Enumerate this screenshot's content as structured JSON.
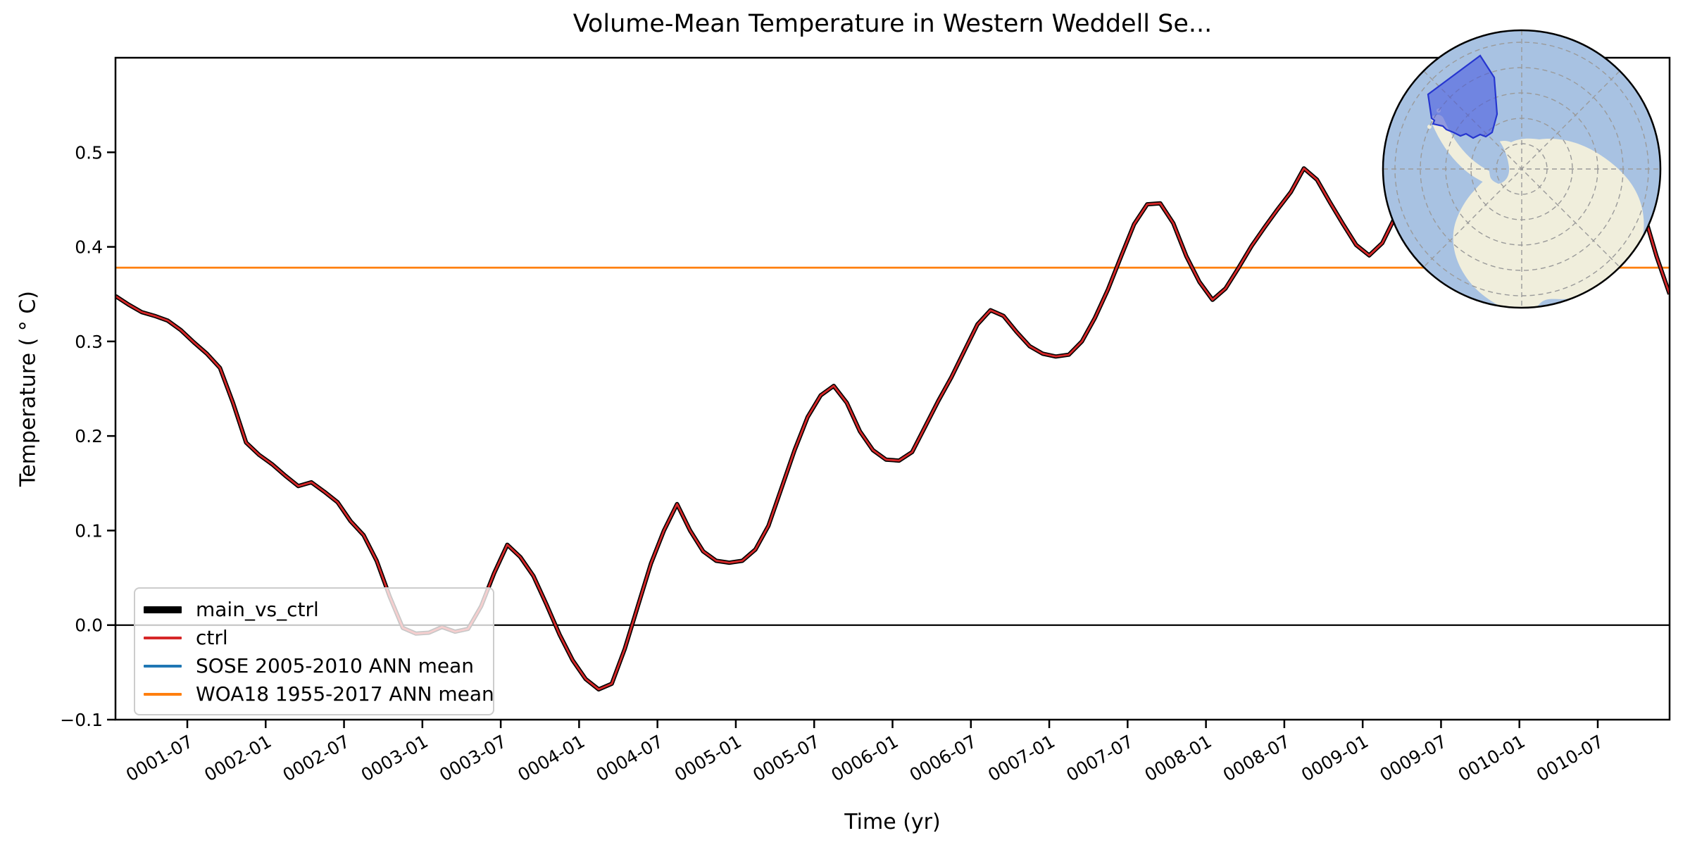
{
  "title": "Volume-Mean Temperature in Western Weddell Se...",
  "axes": {
    "xlabel": "Time (yr)",
    "ylabel": "Temperature ( ° C)",
    "ylim": [
      -0.1,
      0.6
    ],
    "x_ticks": [
      {
        "m": 6,
        "label": "0001-07"
      },
      {
        "m": 12,
        "label": "0002-01"
      },
      {
        "m": 18,
        "label": "0002-07"
      },
      {
        "m": 24,
        "label": "0003-01"
      },
      {
        "m": 30,
        "label": "0003-07"
      },
      {
        "m": 36,
        "label": "0004-01"
      },
      {
        "m": 42,
        "label": "0004-07"
      },
      {
        "m": 48,
        "label": "0005-01"
      },
      {
        "m": 54,
        "label": "0005-07"
      },
      {
        "m": 60,
        "label": "0006-01"
      },
      {
        "m": 66,
        "label": "0006-07"
      },
      {
        "m": 72,
        "label": "0007-01"
      },
      {
        "m": 78,
        "label": "0007-07"
      },
      {
        "m": 84,
        "label": "0008-01"
      },
      {
        "m": 90,
        "label": "0008-07"
      },
      {
        "m": 96,
        "label": "0009-01"
      },
      {
        "m": 102,
        "label": "0009-07"
      },
      {
        "m": 108,
        "label": "0010-01"
      },
      {
        "m": 114,
        "label": "0010-07"
      }
    ],
    "y_ticks": [
      {
        "v": -0.1,
        "label": "−0.1"
      },
      {
        "v": 0.0,
        "label": "0.0"
      },
      {
        "v": 0.1,
        "label": "0.1"
      },
      {
        "v": 0.2,
        "label": "0.2"
      },
      {
        "v": 0.3,
        "label": "0.3"
      },
      {
        "v": 0.4,
        "label": "0.4"
      },
      {
        "v": 0.5,
        "label": "0.5"
      }
    ]
  },
  "chart_data": {
    "type": "line",
    "title": "Volume-Mean Temperature in Western Weddell Se...",
    "xlabel": "Time (yr)",
    "ylabel": "Temperature ( ° C)",
    "x_start": "0001-01",
    "x_end": "0010-12",
    "x_unit": "month",
    "n_points": 120,
    "ylim": [
      -0.1,
      0.6
    ],
    "grid": false,
    "legend_position": "lower left",
    "zero_line": 0.0,
    "series": [
      {
        "name": "main_vs_ctrl",
        "type": "line",
        "color": "#000000",
        "linewidth": "thick",
        "values": [
          0.348,
          0.339,
          0.331,
          0.327,
          0.322,
          0.312,
          0.299,
          0.287,
          0.272,
          0.235,
          0.193,
          0.18,
          0.17,
          0.158,
          0.147,
          0.151,
          0.141,
          0.13,
          0.11,
          0.095,
          0.068,
          0.03,
          -0.003,
          -0.009,
          -0.008,
          -0.002,
          -0.007,
          -0.004,
          0.02,
          0.055,
          0.085,
          0.072,
          0.052,
          0.022,
          -0.01,
          -0.037,
          -0.057,
          -0.068,
          -0.062,
          -0.025,
          0.02,
          0.065,
          0.1,
          0.128,
          0.1,
          0.078,
          0.068,
          0.066,
          0.068,
          0.08,
          0.105,
          0.145,
          0.185,
          0.22,
          0.243,
          0.253,
          0.235,
          0.205,
          0.185,
          0.175,
          0.174,
          0.183,
          0.21,
          0.237,
          0.262,
          0.29,
          0.318,
          0.333,
          0.327,
          0.31,
          0.295,
          0.287,
          0.284,
          0.286,
          0.3,
          0.325,
          0.355,
          0.39,
          0.424,
          0.445,
          0.446,
          0.425,
          0.39,
          0.363,
          0.344,
          0.356,
          0.378,
          0.401,
          0.421,
          0.44,
          0.458,
          0.483,
          0.471,
          0.447,
          0.424,
          0.402,
          0.391,
          0.404,
          0.432,
          0.45,
          0.465,
          0.478,
          0.488,
          0.492,
          0.482,
          0.468,
          0.455,
          0.446,
          0.441,
          0.445,
          0.458,
          0.472,
          0.485,
          0.494,
          0.5,
          0.502,
          0.49,
          0.437,
          0.39,
          0.35
        ]
      },
      {
        "name": "ctrl",
        "type": "line",
        "color": "#d62728",
        "linewidth": "thin",
        "coincides_with": "main_vs_ctrl",
        "values": null
      },
      {
        "name": "SOSE 2005-2010 ANN mean",
        "type": "hline",
        "color": "#1f77b4",
        "value": null
      },
      {
        "name": "WOA18 1955-2017 ANN mean",
        "type": "hline",
        "color": "#ff7f0e",
        "value": 0.378
      }
    ]
  },
  "inset_map": {
    "description": "South polar stereographic map of Antarctica with highlighted sector",
    "highlight_region": "Western Weddell Sea",
    "colors": {
      "ocean": "#a8c2e2",
      "land": "#f0eedc",
      "region_fill": "#4154e0",
      "region_border": "#2636cf",
      "graticule": "#9a9a9a",
      "border": "#000000"
    }
  }
}
